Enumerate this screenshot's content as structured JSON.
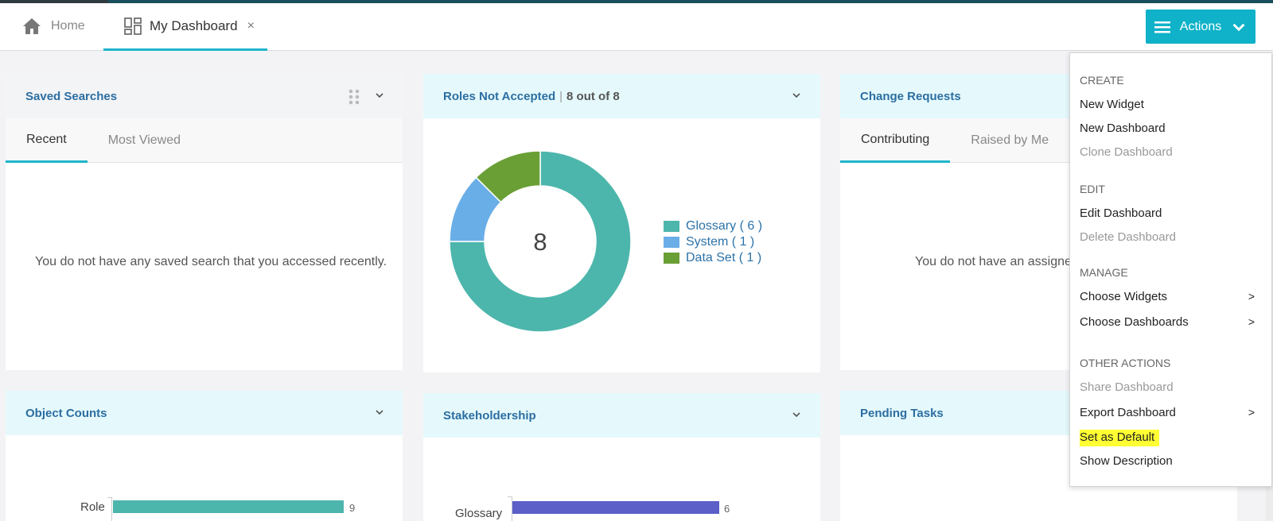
{
  "nav": {
    "home_label": "Home",
    "dashboard_tab_label": "My Dashboard",
    "close_glyph": "×",
    "actions_label": "Actions"
  },
  "widgets": {
    "saved_searches": {
      "title": "Saved Searches",
      "tabs": [
        "Recent",
        "Most Viewed"
      ],
      "empty_message": "You do not have any saved search that you accessed recently."
    },
    "roles_not_accepted": {
      "title": "Roles Not Accepted",
      "subtitle": "8 out of 8",
      "center_value": "8",
      "legend": [
        "Glossary ( 6 )",
        "System ( 1 )",
        "Data Set ( 1 )"
      ]
    },
    "change_requests": {
      "title": "Change Requests",
      "tabs": [
        "Contributing",
        "Raised by Me"
      ],
      "empty_message": "You do not have an assigned"
    },
    "object_counts": {
      "title": "Object Counts",
      "bar_label": "Role",
      "bar_value": "9"
    },
    "stakeholdership": {
      "title": "Stakeholdership",
      "bar_label": "Glossary",
      "bar_value": "6"
    },
    "pending_tasks": {
      "title": "Pending Tasks"
    }
  },
  "chart_data": [
    {
      "type": "pie",
      "categories": [
        "Glossary",
        "System",
        "Data Set"
      ],
      "values": [
        6,
        1,
        1
      ],
      "colors": [
        "#4db6ac",
        "#6aaee8",
        "#6a9f35"
      ],
      "total": 8
    },
    {
      "type": "bar",
      "categories": [
        "Role"
      ],
      "values": [
        9
      ],
      "colors": [
        "#4db6ac"
      ]
    },
    {
      "type": "bar",
      "categories": [
        "Glossary"
      ],
      "values": [
        6
      ],
      "colors": [
        "#5b5fc7"
      ]
    }
  ],
  "menu": {
    "create_header": "CREATE",
    "new_widget": "New Widget",
    "new_dashboard": "New Dashboard",
    "clone_dashboard": "Clone Dashboard",
    "edit_header": "EDIT",
    "edit_dashboard": "Edit Dashboard",
    "delete_dashboard": "Delete Dashboard",
    "manage_header": "MANAGE",
    "choose_widgets": "Choose Widgets",
    "choose_dashboards": "Choose Dashboards",
    "other_header": "OTHER ACTIONS",
    "share_dashboard": "Share Dashboard",
    "export_dashboard": "Export Dashboard",
    "set_as_default": "Set as Default",
    "show_description": "Show Description",
    "submenu_arrow": ">"
  },
  "colors": {
    "accent": "#0fb2c8",
    "header_bg": "#e5f9fc",
    "highlight": "#ffff33"
  }
}
